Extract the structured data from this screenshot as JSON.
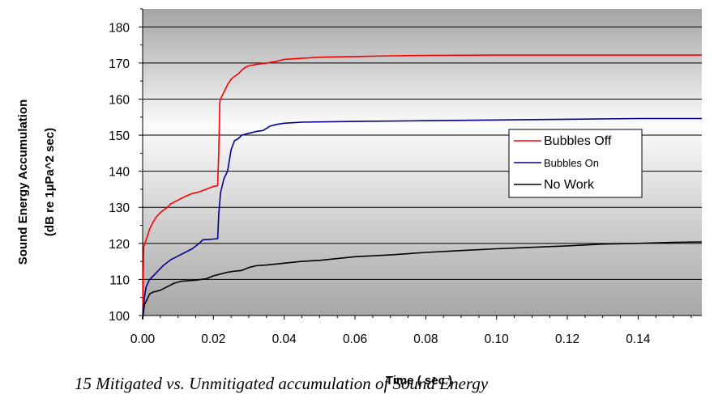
{
  "chart_data": {
    "type": "line",
    "title": "",
    "xlabel": "Time ( sec )",
    "ylabel_line1": "Sound Energy Accumulation",
    "ylabel_line2": "(dB re 1µPa^2 sec)",
    "xlim": [
      0,
      0.158
    ],
    "ylim": [
      100,
      185
    ],
    "x_ticks": [
      0.0,
      0.02,
      0.04,
      0.06,
      0.08,
      0.1,
      0.12,
      0.14
    ],
    "x_tick_labels": [
      "0.00",
      "0.02",
      "0.04",
      "0.06",
      "0.08",
      "0.10",
      "0.12",
      "0.14"
    ],
    "y_ticks": [
      100,
      110,
      120,
      130,
      140,
      150,
      160,
      170,
      180
    ],
    "y_tick_labels": [
      "100",
      "110",
      "120",
      "130",
      "140",
      "150",
      "160",
      "170",
      "180"
    ],
    "grid": "horizontal",
    "legend_placement": "right",
    "background": "gradient-grey",
    "series": [
      {
        "name": "Bubbles Off",
        "color": "#ff0000",
        "points": [
          [
            0,
            99
          ],
          [
            0.0003,
            119
          ],
          [
            0.001,
            121
          ],
          [
            0.002,
            124
          ],
          [
            0.003,
            126
          ],
          [
            0.004,
            127.5
          ],
          [
            0.005,
            128.5
          ],
          [
            0.006,
            129.3
          ],
          [
            0.007,
            130
          ],
          [
            0.008,
            131
          ],
          [
            0.01,
            132
          ],
          [
            0.012,
            133
          ],
          [
            0.014,
            133.8
          ],
          [
            0.016,
            134.3
          ],
          [
            0.018,
            135
          ],
          [
            0.02,
            135.8
          ],
          [
            0.0212,
            136
          ],
          [
            0.0215,
            145
          ],
          [
            0.0218,
            159
          ],
          [
            0.022,
            160
          ],
          [
            0.023,
            162
          ],
          [
            0.024,
            164
          ],
          [
            0.025,
            165.5
          ],
          [
            0.026,
            166.3
          ],
          [
            0.027,
            167
          ],
          [
            0.028,
            168
          ],
          [
            0.029,
            168.8
          ],
          [
            0.03,
            169.2
          ],
          [
            0.032,
            169.6
          ],
          [
            0.035,
            170
          ],
          [
            0.038,
            170.5
          ],
          [
            0.04,
            171
          ],
          [
            0.045,
            171.3
          ],
          [
            0.05,
            171.6
          ],
          [
            0.06,
            171.8
          ],
          [
            0.07,
            172
          ],
          [
            0.08,
            172.1
          ],
          [
            0.1,
            172.2
          ],
          [
            0.12,
            172.2
          ],
          [
            0.14,
            172.2
          ],
          [
            0.158,
            172.2
          ]
        ]
      },
      {
        "name": "Bubbles On",
        "color": "#00008b",
        "points": [
          [
            0,
            99
          ],
          [
            0.0005,
            105
          ],
          [
            0.001,
            108
          ],
          [
            0.002,
            110
          ],
          [
            0.003,
            111
          ],
          [
            0.004,
            112
          ],
          [
            0.005,
            113
          ],
          [
            0.006,
            114
          ],
          [
            0.008,
            115.5
          ],
          [
            0.01,
            116.5
          ],
          [
            0.012,
            117.5
          ],
          [
            0.014,
            118.5
          ],
          [
            0.016,
            120
          ],
          [
            0.017,
            121
          ],
          [
            0.02,
            121.2
          ],
          [
            0.0212,
            121.3
          ],
          [
            0.0215,
            128
          ],
          [
            0.022,
            134
          ],
          [
            0.023,
            138
          ],
          [
            0.024,
            140
          ],
          [
            0.025,
            146
          ],
          [
            0.026,
            148.5
          ],
          [
            0.027,
            149
          ],
          [
            0.028,
            150
          ],
          [
            0.03,
            150.5
          ],
          [
            0.032,
            151
          ],
          [
            0.034,
            151.3
          ],
          [
            0.036,
            152.5
          ],
          [
            0.038,
            153
          ],
          [
            0.04,
            153.3
          ],
          [
            0.045,
            153.6
          ],
          [
            0.06,
            153.8
          ],
          [
            0.08,
            154
          ],
          [
            0.1,
            154.2
          ],
          [
            0.12,
            154.4
          ],
          [
            0.14,
            154.6
          ],
          [
            0.158,
            154.6
          ]
        ]
      },
      {
        "name": "No Work",
        "color": "#000000",
        "points": [
          [
            0,
            99
          ],
          [
            0.0005,
            103
          ],
          [
            0.001,
            104
          ],
          [
            0.002,
            106
          ],
          [
            0.003,
            106.5
          ],
          [
            0.005,
            107
          ],
          [
            0.007,
            108
          ],
          [
            0.009,
            109
          ],
          [
            0.011,
            109.5
          ],
          [
            0.015,
            109.8
          ],
          [
            0.018,
            110.2
          ],
          [
            0.02,
            111
          ],
          [
            0.022,
            111.5
          ],
          [
            0.024,
            112
          ],
          [
            0.026,
            112.3
          ],
          [
            0.028,
            112.5
          ],
          [
            0.03,
            113.3
          ],
          [
            0.032,
            113.8
          ],
          [
            0.035,
            114
          ],
          [
            0.04,
            114.5
          ],
          [
            0.045,
            115
          ],
          [
            0.05,
            115.3
          ],
          [
            0.055,
            115.8
          ],
          [
            0.06,
            116.3
          ],
          [
            0.07,
            116.8
          ],
          [
            0.08,
            117.5
          ],
          [
            0.09,
            118
          ],
          [
            0.1,
            118.5
          ],
          [
            0.11,
            118.9
          ],
          [
            0.12,
            119.3
          ],
          [
            0.13,
            119.8
          ],
          [
            0.14,
            120
          ],
          [
            0.15,
            120.3
          ],
          [
            0.158,
            120.4
          ]
        ]
      }
    ]
  },
  "caption": "15      Mitigated vs. Unmitigated accumulation of Sound Energy"
}
